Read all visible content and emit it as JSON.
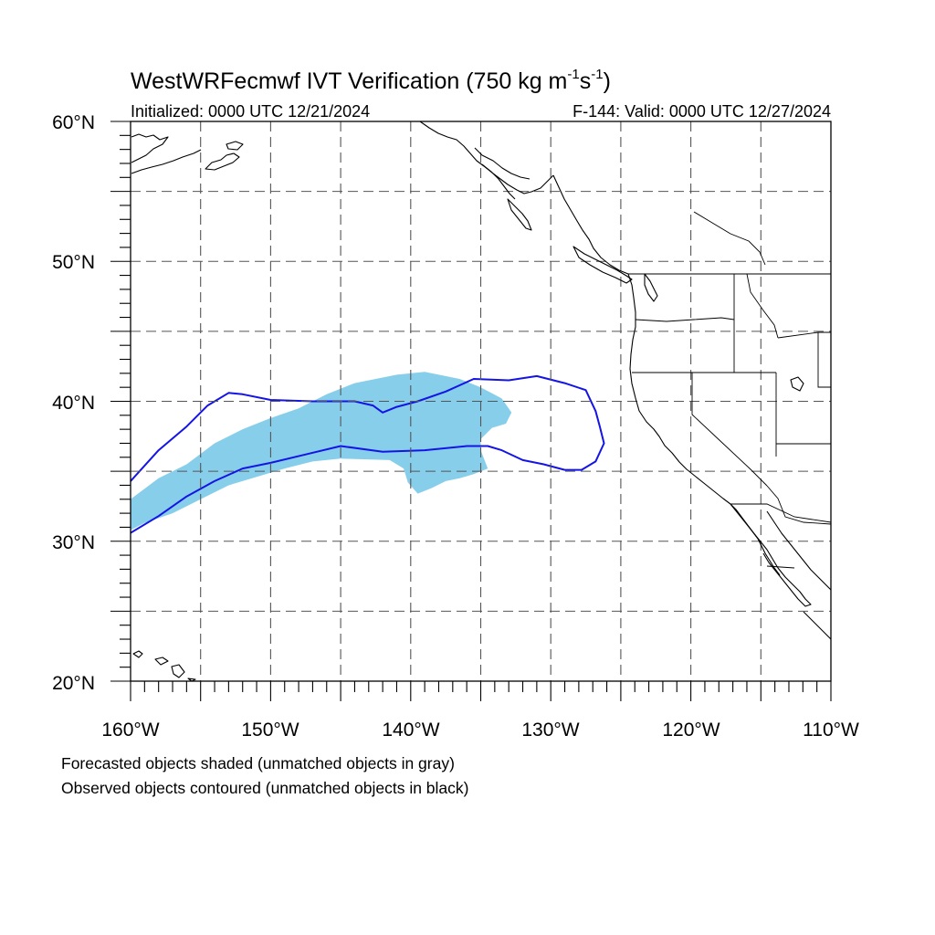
{
  "title": {
    "main": "WestWRFecmwf IVT Verification (750 kg m",
    "sup1": "-1",
    "mid": "s",
    "sup2": "-1",
    "end": ")"
  },
  "initialized": "Initialized: 0000 UTC 12/21/2024",
  "valid": "F-144: Valid: 0000 UTC 12/27/2024",
  "axes": {
    "lon_labels": [
      "160°W",
      "150°W",
      "140°W",
      "130°W",
      "120°W",
      "110°W"
    ],
    "lat_labels": [
      "60°N",
      "50°N",
      "40°N",
      "30°N",
      "20°N"
    ],
    "lon_range": [
      -160,
      -110
    ],
    "lat_range": [
      20,
      60
    ]
  },
  "legend": {
    "line1": "Forecasted objects shaded (unmatched objects in gray)",
    "line2": "Observed objects contoured (unmatched objects in black)"
  },
  "colors": {
    "forecast_shade": "#87ceeb",
    "observed_contour": "#1414e6"
  },
  "chart_data": {
    "type": "map",
    "forecast_objects": [
      {
        "label": "forecasted IVT object",
        "lonlat": [
          [
            -160,
            33
          ],
          [
            -158,
            34.5
          ],
          [
            -156,
            35.5
          ],
          [
            -154,
            37
          ],
          [
            -152,
            38
          ],
          [
            -150,
            38.8
          ],
          [
            -148,
            39.5
          ],
          [
            -146,
            40.5
          ],
          [
            -144,
            41.3
          ],
          [
            -141,
            41.9
          ],
          [
            -139,
            42.1
          ],
          [
            -136.5,
            41.6
          ],
          [
            -135,
            41
          ],
          [
            -133.5,
            40.2
          ],
          [
            -132.8,
            39.2
          ],
          [
            -133.2,
            38.4
          ],
          [
            -134.2,
            38.1
          ],
          [
            -135,
            37.3
          ],
          [
            -135,
            36.5
          ],
          [
            -134.5,
            35.2
          ],
          [
            -135.5,
            34.8
          ],
          [
            -136.5,
            34.5
          ],
          [
            -137.5,
            34.3
          ],
          [
            -138.5,
            33.8
          ],
          [
            -139.5,
            33.4
          ],
          [
            -140.2,
            34.2
          ],
          [
            -140.5,
            35.2
          ],
          [
            -141.5,
            35.8
          ],
          [
            -145,
            35.9
          ],
          [
            -147,
            35.7
          ],
          [
            -149,
            35.2
          ],
          [
            -151,
            34.6
          ],
          [
            -153,
            34
          ],
          [
            -155,
            33
          ],
          [
            -157,
            32
          ],
          [
            -159,
            31.3
          ],
          [
            -160,
            30.8
          ]
        ]
      }
    ],
    "observed_objects": [
      {
        "label": "observed IVT object",
        "lonlat": [
          [
            -160,
            34.3
          ],
          [
            -158,
            36.5
          ],
          [
            -156,
            38.2
          ],
          [
            -154.5,
            39.7
          ],
          [
            -153,
            40.6
          ],
          [
            -152,
            40.5
          ],
          [
            -150,
            40.1
          ],
          [
            -147,
            40
          ],
          [
            -144,
            40
          ],
          [
            -142.7,
            39.7
          ],
          [
            -142,
            39.2
          ],
          [
            -141,
            39.6
          ],
          [
            -139.5,
            40
          ],
          [
            -137.5,
            40.7
          ],
          [
            -135.5,
            41.6
          ],
          [
            -133,
            41.5
          ],
          [
            -131,
            41.8
          ],
          [
            -129,
            41.3
          ],
          [
            -127.5,
            40.8
          ],
          [
            -126.8,
            39.3
          ],
          [
            -126.5,
            38.2
          ],
          [
            -126.2,
            37
          ],
          [
            -126.8,
            35.7
          ],
          [
            -127.8,
            35.1
          ],
          [
            -129,
            35.1
          ],
          [
            -130.5,
            35.5
          ],
          [
            -132,
            35.8
          ],
          [
            -133.5,
            36.5
          ],
          [
            -134.5,
            36.8
          ],
          [
            -136,
            36.8
          ],
          [
            -139,
            36.5
          ],
          [
            -142,
            36.4
          ],
          [
            -145,
            36.8
          ],
          [
            -147.5,
            36.2
          ],
          [
            -150,
            35.6
          ],
          [
            -152,
            35.2
          ],
          [
            -154,
            34.3
          ],
          [
            -156,
            33.2
          ],
          [
            -158,
            31.8
          ],
          [
            -160,
            30.6
          ]
        ]
      }
    ]
  }
}
